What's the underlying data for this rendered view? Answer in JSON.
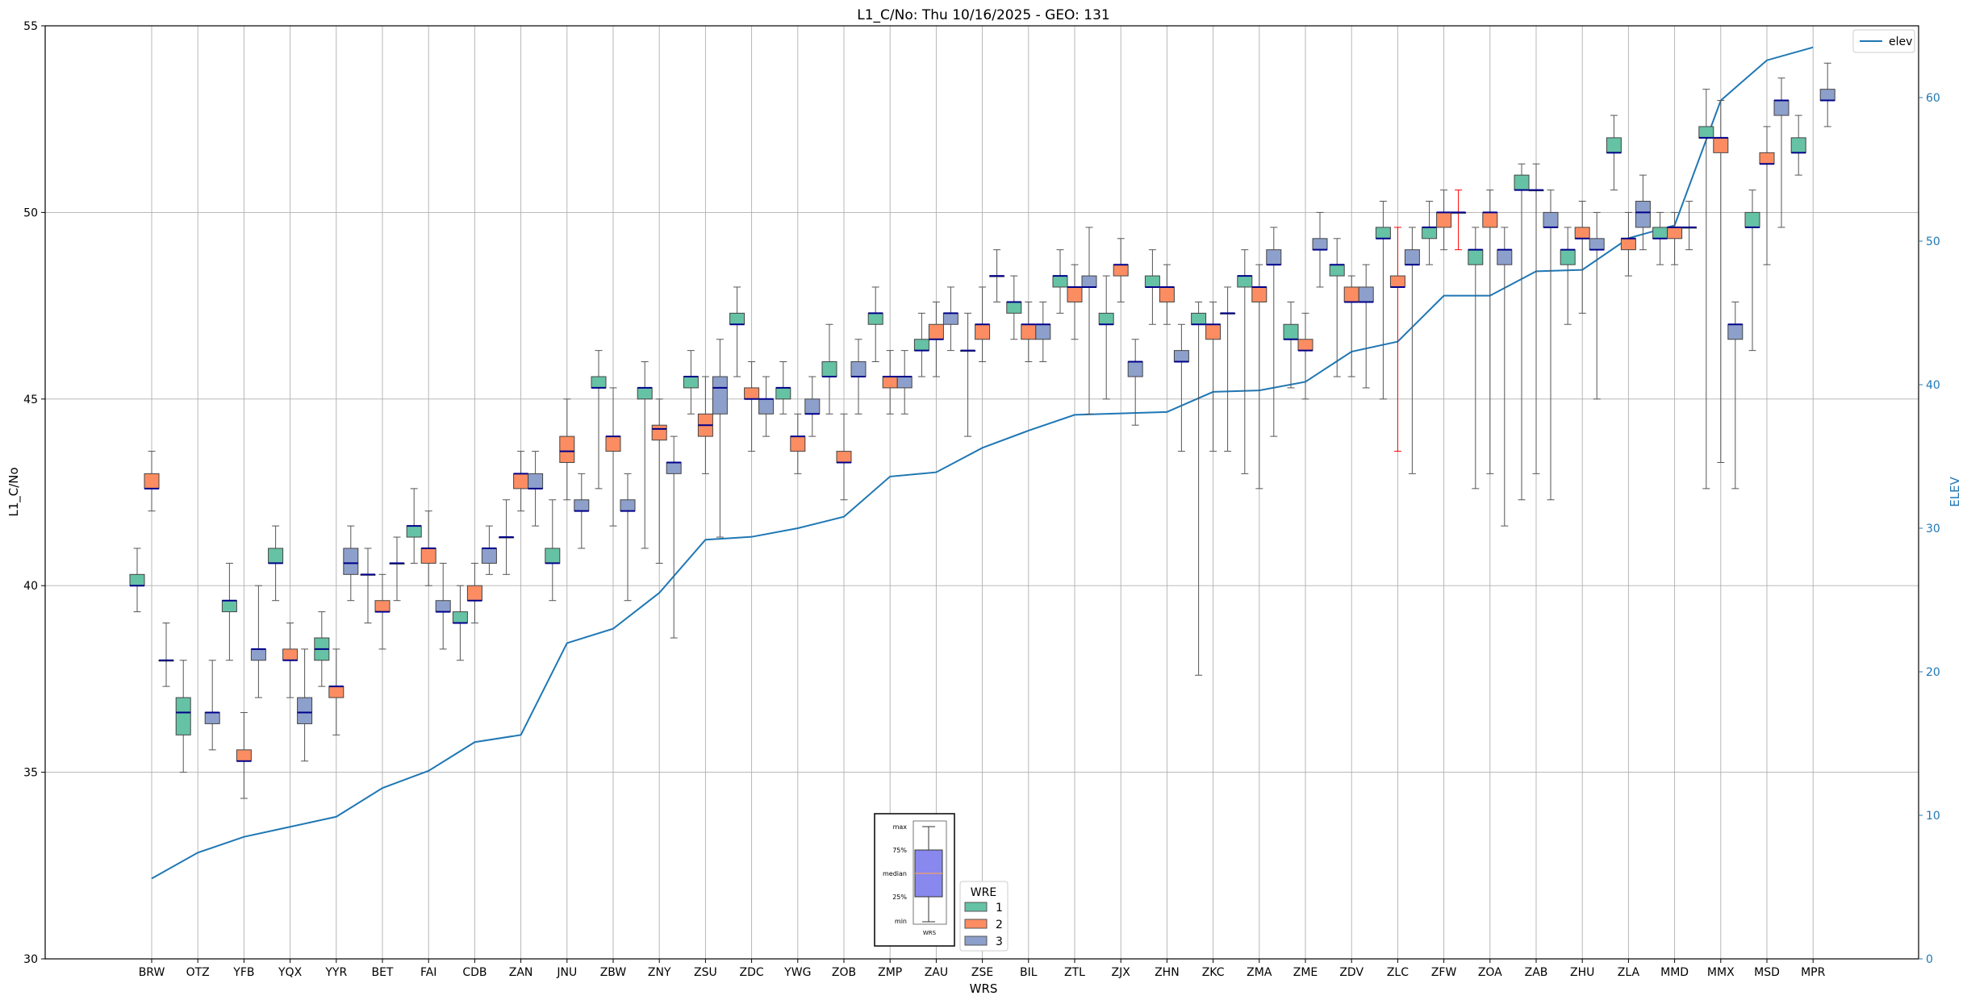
{
  "chart_data": {
    "type": "box",
    "title": "L1_C/No: Thu 10/16/2025 - GEO: 131",
    "xlabel": "WRS",
    "ylabel": "L1_C/No",
    "y2label": "ELEV",
    "ylim": [
      30,
      55
    ],
    "y2lim": [
      0,
      65
    ],
    "yticks": [
      30,
      35,
      40,
      45,
      50,
      55
    ],
    "y2ticks": [
      0,
      10,
      20,
      30,
      40,
      50,
      60
    ],
    "grid": true,
    "legend_line": {
      "label": "elev",
      "position": "top-right"
    },
    "legend_boxes": {
      "title": "WRE",
      "position": "bottom-center",
      "entries": [
        "1",
        "2",
        "3"
      ]
    },
    "colors": {
      "wre1": "#66c2a5",
      "wre2": "#fc8d62",
      "wre3": "#8da0cb",
      "elev": "#1f77b4",
      "median": "#00008b",
      "whisker": "#555555",
      "highlight_whisker": "#ff0000",
      "axis_right": "#1f77b4"
    },
    "key": {
      "labels": [
        "max",
        "75%",
        "median",
        "25%",
        "min"
      ],
      "caption": "WRS"
    },
    "categories": [
      "BRW",
      "OTZ",
      "YFB",
      "YQX",
      "YYR",
      "BET",
      "FAI",
      "CDB",
      "ZAN",
      "JNU",
      "ZBW",
      "ZNY",
      "ZSU",
      "ZDC",
      "YWG",
      "ZOB",
      "ZMP",
      "ZAU",
      "ZSE",
      "BIL",
      "ZTL",
      "ZJX",
      "ZHN",
      "ZKC",
      "ZMA",
      "ZME",
      "ZDV",
      "ZLC",
      "ZFW",
      "ZOA",
      "ZAB",
      "ZHU",
      "ZLA",
      "MMD",
      "MMX",
      "MSD",
      "MPR"
    ],
    "elev": [
      5.6,
      7.4,
      8.5,
      9.2,
      9.9,
      11.9,
      13.1,
      15.1,
      15.6,
      22.0,
      23.0,
      25.5,
      29.2,
      29.4,
      30.0,
      30.8,
      33.6,
      33.9,
      35.6,
      36.8,
      37.9,
      38.0,
      38.1,
      39.5,
      39.6,
      40.2,
      42.3,
      43.0,
      46.2,
      46.2,
      47.9,
      48.0,
      50.2,
      51.1,
      59.8,
      62.6,
      63.5
    ],
    "boxes": [
      {
        "cat": "BRW",
        "wre": 1,
        "min": 39.3,
        "q1": 40.0,
        "med": 40.0,
        "q3": 40.3,
        "max": 41.0
      },
      {
        "cat": "BRW",
        "wre": 2,
        "min": 42.0,
        "q1": 42.6,
        "med": 42.6,
        "q3": 43.0,
        "max": 43.6
      },
      {
        "cat": "BRW",
        "wre": 3,
        "min": 37.3,
        "q1": 38.0,
        "med": 38.0,
        "q3": 38.0,
        "max": 39.0
      },
      {
        "cat": "OTZ",
        "wre": 1,
        "min": 35.0,
        "q1": 36.0,
        "med": 36.6,
        "q3": 37.0,
        "max": 38.0
      },
      {
        "cat": "OTZ",
        "wre": 3,
        "min": 35.6,
        "q1": 36.3,
        "med": 36.6,
        "q3": 36.6,
        "max": 38.0
      },
      {
        "cat": "YFB",
        "wre": 1,
        "min": 38.0,
        "q1": 39.3,
        "med": 39.6,
        "q3": 39.6,
        "max": 40.6
      },
      {
        "cat": "YFB",
        "wre": 2,
        "min": 34.3,
        "q1": 35.3,
        "med": 35.3,
        "q3": 35.6,
        "max": 36.6
      },
      {
        "cat": "YFB",
        "wre": 3,
        "min": 37.0,
        "q1": 38.0,
        "med": 38.3,
        "q3": 38.3,
        "max": 40.0
      },
      {
        "cat": "YQX",
        "wre": 1,
        "min": 39.6,
        "q1": 40.6,
        "med": 40.6,
        "q3": 41.0,
        "max": 41.6
      },
      {
        "cat": "YQX",
        "wre": 2,
        "min": 37.0,
        "q1": 38.0,
        "med": 38.0,
        "q3": 38.3,
        "max": 39.0
      },
      {
        "cat": "YQX",
        "wre": 3,
        "min": 35.3,
        "q1": 36.3,
        "med": 36.6,
        "q3": 37.0,
        "max": 38.3
      },
      {
        "cat": "YYR",
        "wre": 1,
        "min": 37.3,
        "q1": 38.0,
        "med": 38.3,
        "q3": 38.6,
        "max": 39.3
      },
      {
        "cat": "YYR",
        "wre": 2,
        "min": 36.0,
        "q1": 37.0,
        "med": 37.3,
        "q3": 37.3,
        "max": 38.3
      },
      {
        "cat": "YYR",
        "wre": 3,
        "min": 39.6,
        "q1": 40.3,
        "med": 40.6,
        "q3": 41.0,
        "max": 41.6
      },
      {
        "cat": "BET",
        "wre": 1,
        "min": 39.0,
        "q1": 40.3,
        "med": 40.3,
        "q3": 40.3,
        "max": 41.0
      },
      {
        "cat": "BET",
        "wre": 2,
        "min": 38.3,
        "q1": 39.3,
        "med": 39.3,
        "q3": 39.6,
        "max": 40.3
      },
      {
        "cat": "BET",
        "wre": 3,
        "min": 39.6,
        "q1": 40.6,
        "med": 40.6,
        "q3": 40.6,
        "max": 41.3
      },
      {
        "cat": "FAI",
        "wre": 1,
        "min": 40.6,
        "q1": 41.3,
        "med": 41.6,
        "q3": 41.6,
        "max": 42.6
      },
      {
        "cat": "FAI",
        "wre": 2,
        "min": 40.0,
        "q1": 40.6,
        "med": 41.0,
        "q3": 41.0,
        "max": 42.0
      },
      {
        "cat": "FAI",
        "wre": 3,
        "min": 38.3,
        "q1": 39.3,
        "med": 39.3,
        "q3": 39.6,
        "max": 40.6
      },
      {
        "cat": "CDB",
        "wre": 1,
        "min": 38.0,
        "q1": 39.0,
        "med": 39.0,
        "q3": 39.3,
        "max": 40.0
      },
      {
        "cat": "CDB",
        "wre": 2,
        "min": 39.0,
        "q1": 39.6,
        "med": 39.6,
        "q3": 40.0,
        "max": 40.6
      },
      {
        "cat": "CDB",
        "wre": 3,
        "min": 40.3,
        "q1": 40.6,
        "med": 41.0,
        "q3": 41.0,
        "max": 41.6
      },
      {
        "cat": "ZAN",
        "wre": 1,
        "min": 40.3,
        "q1": 41.3,
        "med": 41.3,
        "q3": 41.3,
        "max": 42.3
      },
      {
        "cat": "ZAN",
        "wre": 2,
        "min": 42.0,
        "q1": 42.6,
        "med": 43.0,
        "q3": 43.0,
        "max": 43.6
      },
      {
        "cat": "ZAN",
        "wre": 3,
        "min": 41.6,
        "q1": 42.6,
        "med": 42.6,
        "q3": 43.0,
        "max": 43.6
      },
      {
        "cat": "JNU",
        "wre": 1,
        "min": 39.6,
        "q1": 40.6,
        "med": 40.6,
        "q3": 41.0,
        "max": 42.3
      },
      {
        "cat": "JNU",
        "wre": 2,
        "min": 42.3,
        "q1": 43.3,
        "med": 43.6,
        "q3": 44.0,
        "max": 45.0
      },
      {
        "cat": "JNU",
        "wre": 3,
        "min": 41.0,
        "q1": 42.0,
        "med": 42.0,
        "q3": 42.3,
        "max": 43.0
      },
      {
        "cat": "ZBW",
        "wre": 1,
        "min": 42.6,
        "q1": 45.3,
        "med": 45.3,
        "q3": 45.6,
        "max": 46.3
      },
      {
        "cat": "ZBW",
        "wre": 2,
        "min": 41.6,
        "q1": 43.6,
        "med": 44.0,
        "q3": 44.0,
        "max": 45.3
      },
      {
        "cat": "ZBW",
        "wre": 3,
        "min": 39.6,
        "q1": 42.0,
        "med": 42.0,
        "q3": 42.3,
        "max": 43.0
      },
      {
        "cat": "ZNY",
        "wre": 1,
        "min": 41.0,
        "q1": 45.0,
        "med": 45.3,
        "q3": 45.3,
        "max": 46.0
      },
      {
        "cat": "ZNY",
        "wre": 2,
        "min": 40.6,
        "q1": 43.9,
        "med": 44.2,
        "q3": 44.3,
        "max": 45.0
      },
      {
        "cat": "ZNY",
        "wre": 3,
        "min": 38.6,
        "q1": 43.0,
        "med": 43.3,
        "q3": 43.3,
        "max": 44.0
      },
      {
        "cat": "ZSU",
        "wre": 1,
        "min": 44.6,
        "q1": 45.3,
        "med": 45.6,
        "q3": 45.6,
        "max": 46.3
      },
      {
        "cat": "ZSU",
        "wre": 2,
        "min": 43.0,
        "q1": 44.0,
        "med": 44.3,
        "q3": 44.6,
        "max": 45.6
      },
      {
        "cat": "ZSU",
        "wre": 3,
        "min": 41.3,
        "q1": 44.6,
        "med": 45.3,
        "q3": 45.6,
        "max": 46.6
      },
      {
        "cat": "ZDC",
        "wre": 1,
        "min": 45.6,
        "q1": 47.0,
        "med": 47.0,
        "q3": 47.3,
        "max": 48.0
      },
      {
        "cat": "ZDC",
        "wre": 2,
        "min": 43.6,
        "q1": 45.0,
        "med": 45.0,
        "q3": 45.3,
        "max": 46.0
      },
      {
        "cat": "ZDC",
        "wre": 3,
        "min": 44.0,
        "q1": 44.6,
        "med": 45.0,
        "q3": 45.0,
        "max": 45.6
      },
      {
        "cat": "YWG",
        "wre": 1,
        "min": 44.6,
        "q1": 45.0,
        "med": 45.3,
        "q3": 45.3,
        "max": 46.0
      },
      {
        "cat": "YWG",
        "wre": 2,
        "min": 43.0,
        "q1": 43.6,
        "med": 44.0,
        "q3": 44.0,
        "max": 44.6
      },
      {
        "cat": "YWG",
        "wre": 3,
        "min": 44.0,
        "q1": 44.6,
        "med": 44.6,
        "q3": 45.0,
        "max": 45.6
      },
      {
        "cat": "ZOB",
        "wre": 1,
        "min": 44.6,
        "q1": 45.6,
        "med": 45.6,
        "q3": 46.0,
        "max": 47.0
      },
      {
        "cat": "ZOB",
        "wre": 2,
        "min": 42.3,
        "q1": 43.3,
        "med": 43.3,
        "q3": 43.6,
        "max": 44.6
      },
      {
        "cat": "ZOB",
        "wre": 3,
        "min": 44.6,
        "q1": 45.6,
        "med": 45.6,
        "q3": 46.0,
        "max": 46.6
      },
      {
        "cat": "ZMP",
        "wre": 1,
        "min": 46.0,
        "q1": 47.0,
        "med": 47.3,
        "q3": 47.3,
        "max": 48.0
      },
      {
        "cat": "ZMP",
        "wre": 2,
        "min": 44.6,
        "q1": 45.3,
        "med": 45.6,
        "q3": 45.6,
        "max": 46.3
      },
      {
        "cat": "ZMP",
        "wre": 3,
        "min": 44.6,
        "q1": 45.3,
        "med": 45.6,
        "q3": 45.6,
        "max": 46.3
      },
      {
        "cat": "ZAU",
        "wre": 1,
        "min": 45.6,
        "q1": 46.3,
        "med": 46.3,
        "q3": 46.6,
        "max": 47.3
      },
      {
        "cat": "ZAU",
        "wre": 2,
        "min": 45.6,
        "q1": 46.6,
        "med": 46.6,
        "q3": 47.0,
        "max": 47.6
      },
      {
        "cat": "ZAU",
        "wre": 3,
        "min": 46.3,
        "q1": 47.0,
        "med": 47.3,
        "q3": 47.3,
        "max": 48.0
      },
      {
        "cat": "ZSE",
        "wre": 1,
        "min": 44.0,
        "q1": 46.3,
        "med": 46.3,
        "q3": 46.3,
        "max": 47.3
      },
      {
        "cat": "ZSE",
        "wre": 2,
        "min": 46.0,
        "q1": 46.6,
        "med": 47.0,
        "q3": 47.0,
        "max": 48.0
      },
      {
        "cat": "ZSE",
        "wre": 3,
        "min": 47.6,
        "q1": 48.3,
        "med": 48.3,
        "q3": 48.3,
        "max": 49.0
      },
      {
        "cat": "BIL",
        "wre": 1,
        "min": 46.6,
        "q1": 47.3,
        "med": 47.6,
        "q3": 47.6,
        "max": 48.3
      },
      {
        "cat": "BIL",
        "wre": 2,
        "min": 46.0,
        "q1": 46.6,
        "med": 47.0,
        "q3": 47.0,
        "max": 47.6
      },
      {
        "cat": "BIL",
        "wre": 3,
        "min": 46.0,
        "q1": 46.6,
        "med": 47.0,
        "q3": 47.0,
        "max": 47.6
      },
      {
        "cat": "ZTL",
        "wre": 1,
        "min": 47.3,
        "q1": 48.0,
        "med": 48.3,
        "q3": 48.3,
        "max": 49.0
      },
      {
        "cat": "ZTL",
        "wre": 2,
        "min": 46.6,
        "q1": 47.6,
        "med": 48.0,
        "q3": 48.0,
        "max": 48.6
      },
      {
        "cat": "ZTL",
        "wre": 3,
        "min": 44.6,
        "q1": 48.0,
        "med": 48.0,
        "q3": 48.3,
        "max": 49.6
      },
      {
        "cat": "ZJX",
        "wre": 1,
        "min": 45.0,
        "q1": 47.0,
        "med": 47.0,
        "q3": 47.3,
        "max": 48.3
      },
      {
        "cat": "ZJX",
        "wre": 2,
        "min": 47.6,
        "q1": 48.3,
        "med": 48.6,
        "q3": 48.6,
        "max": 49.3
      },
      {
        "cat": "ZJX",
        "wre": 3,
        "min": 44.3,
        "q1": 45.6,
        "med": 46.0,
        "q3": 46.0,
        "max": 46.6
      },
      {
        "cat": "ZHN",
        "wre": 1,
        "min": 47.0,
        "q1": 48.0,
        "med": 48.0,
        "q3": 48.3,
        "max": 49.0
      },
      {
        "cat": "ZHN",
        "wre": 2,
        "min": 47.0,
        "q1": 47.6,
        "med": 48.0,
        "q3": 48.0,
        "max": 48.6
      },
      {
        "cat": "ZHN",
        "wre": 3,
        "min": 43.6,
        "q1": 46.0,
        "med": 46.0,
        "q3": 46.3,
        "max": 47.0
      },
      {
        "cat": "ZKC",
        "wre": 1,
        "min": 37.6,
        "q1": 47.0,
        "med": 47.0,
        "q3": 47.3,
        "max": 47.6
      },
      {
        "cat": "ZKC",
        "wre": 2,
        "min": 43.6,
        "q1": 46.6,
        "med": 47.0,
        "q3": 47.0,
        "max": 47.6
      },
      {
        "cat": "ZKC",
        "wre": 3,
        "min": 43.6,
        "q1": 47.3,
        "med": 47.3,
        "q3": 47.3,
        "max": 48.0
      },
      {
        "cat": "ZMA",
        "wre": 1,
        "min": 43.0,
        "q1": 48.0,
        "med": 48.3,
        "q3": 48.3,
        "max": 49.0
      },
      {
        "cat": "ZMA",
        "wre": 2,
        "min": 42.6,
        "q1": 47.6,
        "med": 48.0,
        "q3": 48.0,
        "max": 48.6
      },
      {
        "cat": "ZMA",
        "wre": 3,
        "min": 44.0,
        "q1": 48.6,
        "med": 48.6,
        "q3": 49.0,
        "max": 49.6
      },
      {
        "cat": "ZME",
        "wre": 1,
        "min": 45.3,
        "q1": 46.6,
        "med": 46.6,
        "q3": 47.0,
        "max": 47.6
      },
      {
        "cat": "ZME",
        "wre": 2,
        "min": 45.0,
        "q1": 46.3,
        "med": 46.3,
        "q3": 46.6,
        "max": 47.3
      },
      {
        "cat": "ZME",
        "wre": 3,
        "min": 48.0,
        "q1": 49.0,
        "med": 49.0,
        "q3": 49.3,
        "max": 50.0
      },
      {
        "cat": "ZDV",
        "wre": 1,
        "min": 45.6,
        "q1": 48.3,
        "med": 48.6,
        "q3": 48.6,
        "max": 49.3
      },
      {
        "cat": "ZDV",
        "wre": 2,
        "min": 45.6,
        "q1": 47.6,
        "med": 47.6,
        "q3": 48.0,
        "max": 48.3
      },
      {
        "cat": "ZDV",
        "wre": 3,
        "min": 45.3,
        "q1": 47.6,
        "med": 47.6,
        "q3": 48.0,
        "max": 48.6
      },
      {
        "cat": "ZLC",
        "wre": 1,
        "min": 45.0,
        "q1": 49.3,
        "med": 49.3,
        "q3": 49.6,
        "max": 50.3
      },
      {
        "cat": "ZLC",
        "wre": 2,
        "min": 43.6,
        "q1": 48.0,
        "med": 48.0,
        "q3": 48.3,
        "max": 49.6,
        "highlight": true
      },
      {
        "cat": "ZLC",
        "wre": 3,
        "min": 43.0,
        "q1": 48.6,
        "med": 48.6,
        "q3": 49.0,
        "max": 49.6
      },
      {
        "cat": "ZFW",
        "wre": 1,
        "min": 48.6,
        "q1": 49.3,
        "med": 49.6,
        "q3": 49.6,
        "max": 50.3
      },
      {
        "cat": "ZFW",
        "wre": 2,
        "min": 49.0,
        "q1": 49.6,
        "med": 50.0,
        "q3": 50.0,
        "max": 50.6
      },
      {
        "cat": "ZFW",
        "wre": 3,
        "min": 49.0,
        "q1": 50.0,
        "med": 50.0,
        "q3": 50.0,
        "max": 50.6,
        "highlight": true
      },
      {
        "cat": "ZOA",
        "wre": 1,
        "min": 42.6,
        "q1": 48.6,
        "med": 49.0,
        "q3": 49.0,
        "max": 49.6
      },
      {
        "cat": "ZOA",
        "wre": 2,
        "min": 43.0,
        "q1": 49.6,
        "med": 50.0,
        "q3": 50.0,
        "max": 50.6
      },
      {
        "cat": "ZOA",
        "wre": 3,
        "min": 41.6,
        "q1": 48.6,
        "med": 49.0,
        "q3": 49.0,
        "max": 49.6
      },
      {
        "cat": "ZAB",
        "wre": 1,
        "min": 42.3,
        "q1": 50.6,
        "med": 50.6,
        "q3": 51.0,
        "max": 51.3
      },
      {
        "cat": "ZAB",
        "wre": 2,
        "min": 43.0,
        "q1": 50.6,
        "med": 50.6,
        "q3": 50.6,
        "max": 51.3
      },
      {
        "cat": "ZAB",
        "wre": 3,
        "min": 42.3,
        "q1": 49.6,
        "med": 49.6,
        "q3": 50.0,
        "max": 50.6
      },
      {
        "cat": "ZHU",
        "wre": 1,
        "min": 47.0,
        "q1": 48.6,
        "med": 49.0,
        "q3": 49.0,
        "max": 49.6
      },
      {
        "cat": "ZHU",
        "wre": 2,
        "min": 47.3,
        "q1": 49.3,
        "med": 49.3,
        "q3": 49.6,
        "max": 50.3
      },
      {
        "cat": "ZHU",
        "wre": 3,
        "min": 45.0,
        "q1": 49.0,
        "med": 49.0,
        "q3": 49.3,
        "max": 50.0
      },
      {
        "cat": "ZLA",
        "wre": 1,
        "min": 50.6,
        "q1": 51.6,
        "med": 51.6,
        "q3": 52.0,
        "max": 52.6
      },
      {
        "cat": "ZLA",
        "wre": 2,
        "min": 48.3,
        "q1": 49.0,
        "med": 49.3,
        "q3": 49.3,
        "max": 50.0
      },
      {
        "cat": "ZLA",
        "wre": 3,
        "min": 49.0,
        "q1": 49.6,
        "med": 50.0,
        "q3": 50.3,
        "max": 51.0
      },
      {
        "cat": "MMD",
        "wre": 1,
        "min": 48.6,
        "q1": 49.3,
        "med": 49.3,
        "q3": 49.6,
        "max": 50.0
      },
      {
        "cat": "MMD",
        "wre": 2,
        "min": 48.6,
        "q1": 49.3,
        "med": 49.6,
        "q3": 49.6,
        "max": 50.0
      },
      {
        "cat": "MMD",
        "wre": 3,
        "min": 49.0,
        "q1": 49.6,
        "med": 49.6,
        "q3": 49.6,
        "max": 50.3
      },
      {
        "cat": "MMX",
        "wre": 1,
        "min": 42.6,
        "q1": 52.0,
        "med": 52.0,
        "q3": 52.3,
        "max": 53.3
      },
      {
        "cat": "MMX",
        "wre": 2,
        "min": 43.3,
        "q1": 51.6,
        "med": 52.0,
        "q3": 52.0,
        "max": 53.0
      },
      {
        "cat": "MMX",
        "wre": 3,
        "min": 42.6,
        "q1": 46.6,
        "med": 47.0,
        "q3": 47.0,
        "max": 47.6
      },
      {
        "cat": "MSD",
        "wre": 1,
        "min": 46.3,
        "q1": 49.6,
        "med": 49.6,
        "q3": 50.0,
        "max": 50.6
      },
      {
        "cat": "MSD",
        "wre": 2,
        "min": 48.6,
        "q1": 51.3,
        "med": 51.3,
        "q3": 51.6,
        "max": 52.3
      },
      {
        "cat": "MSD",
        "wre": 3,
        "min": 49.6,
        "q1": 52.6,
        "med": 53.0,
        "q3": 53.0,
        "max": 53.6
      },
      {
        "cat": "MPR",
        "wre": 1,
        "min": 51.0,
        "q1": 51.6,
        "med": 51.6,
        "q3": 52.0,
        "max": 52.6
      },
      {
        "cat": "MPR",
        "wre": 3,
        "min": 52.3,
        "q1": 53.0,
        "med": 53.0,
        "q3": 53.3,
        "max": 54.0
      }
    ]
  }
}
